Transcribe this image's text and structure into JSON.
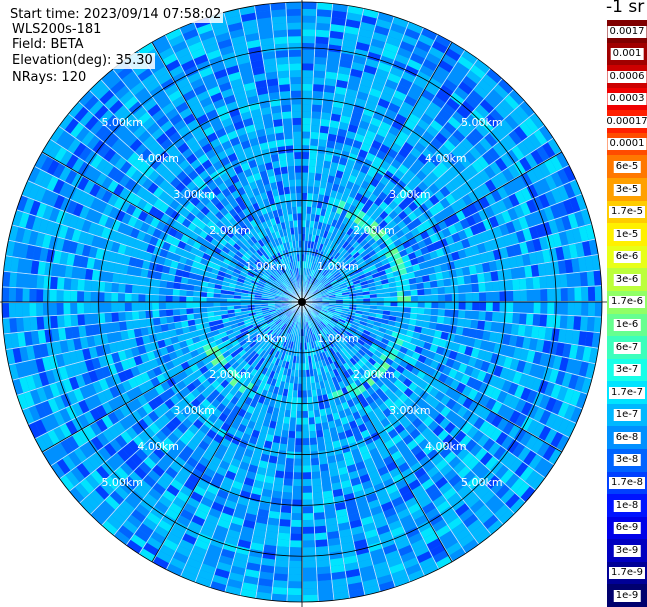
{
  "header": {
    "start_time": "Start time: 2023/09/14 07:58:02",
    "instrument": "WLS200s-181",
    "field": "Field: BETA",
    "elevation": "Elevation(deg): 35.30",
    "nrays": "NRays: 120"
  },
  "colorbar": {
    "unit_label": "-1 sr",
    "labels": [
      "0.0017",
      "0.001",
      "0.0006",
      "0.0003",
      "0.00017",
      "0.0001",
      "6e-5",
      "3e-5",
      "1.7e-5",
      "1e-5",
      "6e-6",
      "3e-6",
      "1.7e-6",
      "1e-6",
      "6e-7",
      "3e-7",
      "1.7e-7",
      "1e-7",
      "6e-8",
      "3e-8",
      "1.7e-8",
      "1e-8",
      "6e-9",
      "3e-9",
      "1.7e-9",
      "1e-9"
    ],
    "colors": [
      "#800000",
      "#a00000",
      "#cc0000",
      "#f00000",
      "#ff2000",
      "#ff4c00",
      "#ff7800",
      "#ffa000",
      "#ffcc00",
      "#fff000",
      "#e8ff18",
      "#bcff3c",
      "#90ff66",
      "#66ff90",
      "#3cffbc",
      "#18ffe8",
      "#00e4ff",
      "#00b8ff",
      "#0090ff",
      "#0064ff",
      "#0040ff",
      "#0014ff",
      "#0000e8",
      "#0000c0",
      "#000096",
      "#00006e"
    ]
  },
  "chart_data": {
    "type": "heatmap",
    "projection": "polar PPI",
    "field": "BETA",
    "elevation_deg": 35.3,
    "nrays": 120,
    "range_ring_labels": [
      "1.00km",
      "2.00km",
      "3.00km",
      "4.00km",
      "5.00km"
    ],
    "range_rings_km": [
      1,
      2,
      3,
      4,
      5
    ],
    "max_range_km": 5.9,
    "aerosol_ring_km": 2.05,
    "background_beta_range": [
      "6e-9",
      "6e-8"
    ],
    "ring_peak_beta": "6e-7",
    "radial_spokes_deg": [
      0,
      30,
      60,
      90,
      120,
      150,
      180,
      210,
      240,
      270,
      300,
      330
    ]
  }
}
